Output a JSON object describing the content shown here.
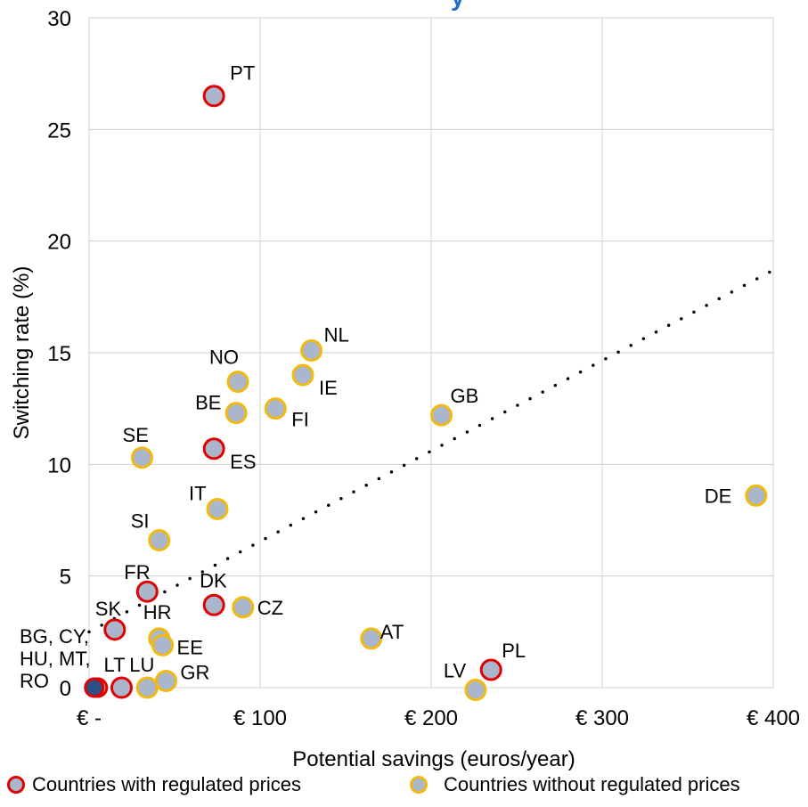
{
  "chart_data": {
    "type": "scatter",
    "title_fragment": "y",
    "xlabel": "Potential savings (euros/year)",
    "ylabel": "Switching rate (%)",
    "xlim": [
      0,
      400
    ],
    "ylim": [
      0,
      30
    ],
    "x_ticks": [
      {
        "value": 0,
        "label": "€ -"
      },
      {
        "value": 100,
        "label": "€ 100"
      },
      {
        "value": 200,
        "label": "€ 200"
      },
      {
        "value": 300,
        "label": "€ 300"
      },
      {
        "value": 400,
        "label": "€ 400"
      }
    ],
    "y_ticks": [
      {
        "value": 0,
        "label": "0"
      },
      {
        "value": 5,
        "label": "5"
      },
      {
        "value": 10,
        "label": "10"
      },
      {
        "value": 15,
        "label": "15"
      },
      {
        "value": 20,
        "label": "20"
      },
      {
        "value": 25,
        "label": "25"
      },
      {
        "value": 30,
        "label": "30"
      }
    ],
    "grid": true,
    "colors": {
      "fill": "#a9b6cc",
      "regulated_edge": "#e00000",
      "unregulated_edge": "#f2b90f",
      "cluster_fill": "#2e4f86",
      "grid": "#d0d0d0",
      "title": "#1f6fc2"
    },
    "series": [
      {
        "name": "Countries with regulated prices",
        "points": [
          {
            "label": "PT",
            "x": 73,
            "y": 26.5
          },
          {
            "label": "ES",
            "x": 73,
            "y": 10.7
          },
          {
            "label": "FR",
            "x": 34,
            "y": 4.3
          },
          {
            "label": "DK",
            "x": 73,
            "y": 3.7
          },
          {
            "label": "SK",
            "x": 15,
            "y": 2.6
          },
          {
            "label": "PL",
            "x": 235,
            "y": 0.8
          },
          {
            "label": "LT",
            "x": 19,
            "y": 0.0
          },
          {
            "label": "BG, CY, HU, MT, RO",
            "x": 3,
            "y": 0.0
          }
        ]
      },
      {
        "name": "Countries without regulated prices",
        "points": [
          {
            "label": "NL",
            "x": 130,
            "y": 15.1
          },
          {
            "label": "IE",
            "x": 125,
            "y": 14.0
          },
          {
            "label": "NO",
            "x": 87,
            "y": 13.7
          },
          {
            "label": "BE",
            "x": 86,
            "y": 12.3
          },
          {
            "label": "FI",
            "x": 109,
            "y": 12.5
          },
          {
            "label": "GB",
            "x": 206,
            "y": 12.2
          },
          {
            "label": "SE",
            "x": 31,
            "y": 10.3
          },
          {
            "label": "DE",
            "x": 390,
            "y": 8.6
          },
          {
            "label": "IT",
            "x": 75,
            "y": 8.0
          },
          {
            "label": "SI",
            "x": 41,
            "y": 6.6
          },
          {
            "label": "CZ",
            "x": 90,
            "y": 3.6
          },
          {
            "label": "HR",
            "x": 41,
            "y": 2.2
          },
          {
            "label": "EE",
            "x": 43,
            "y": 1.9
          },
          {
            "label": "AT",
            "x": 165,
            "y": 2.2
          },
          {
            "label": "GR",
            "x": 45,
            "y": 0.3
          },
          {
            "label": "LU",
            "x": 34,
            "y": 0.0
          },
          {
            "label": "LV",
            "x": 226,
            "y": -0.1
          }
        ]
      }
    ],
    "trendline": {
      "style": "dotted",
      "x": [
        0,
        400
      ],
      "y": [
        2.5,
        18.7
      ]
    }
  }
}
